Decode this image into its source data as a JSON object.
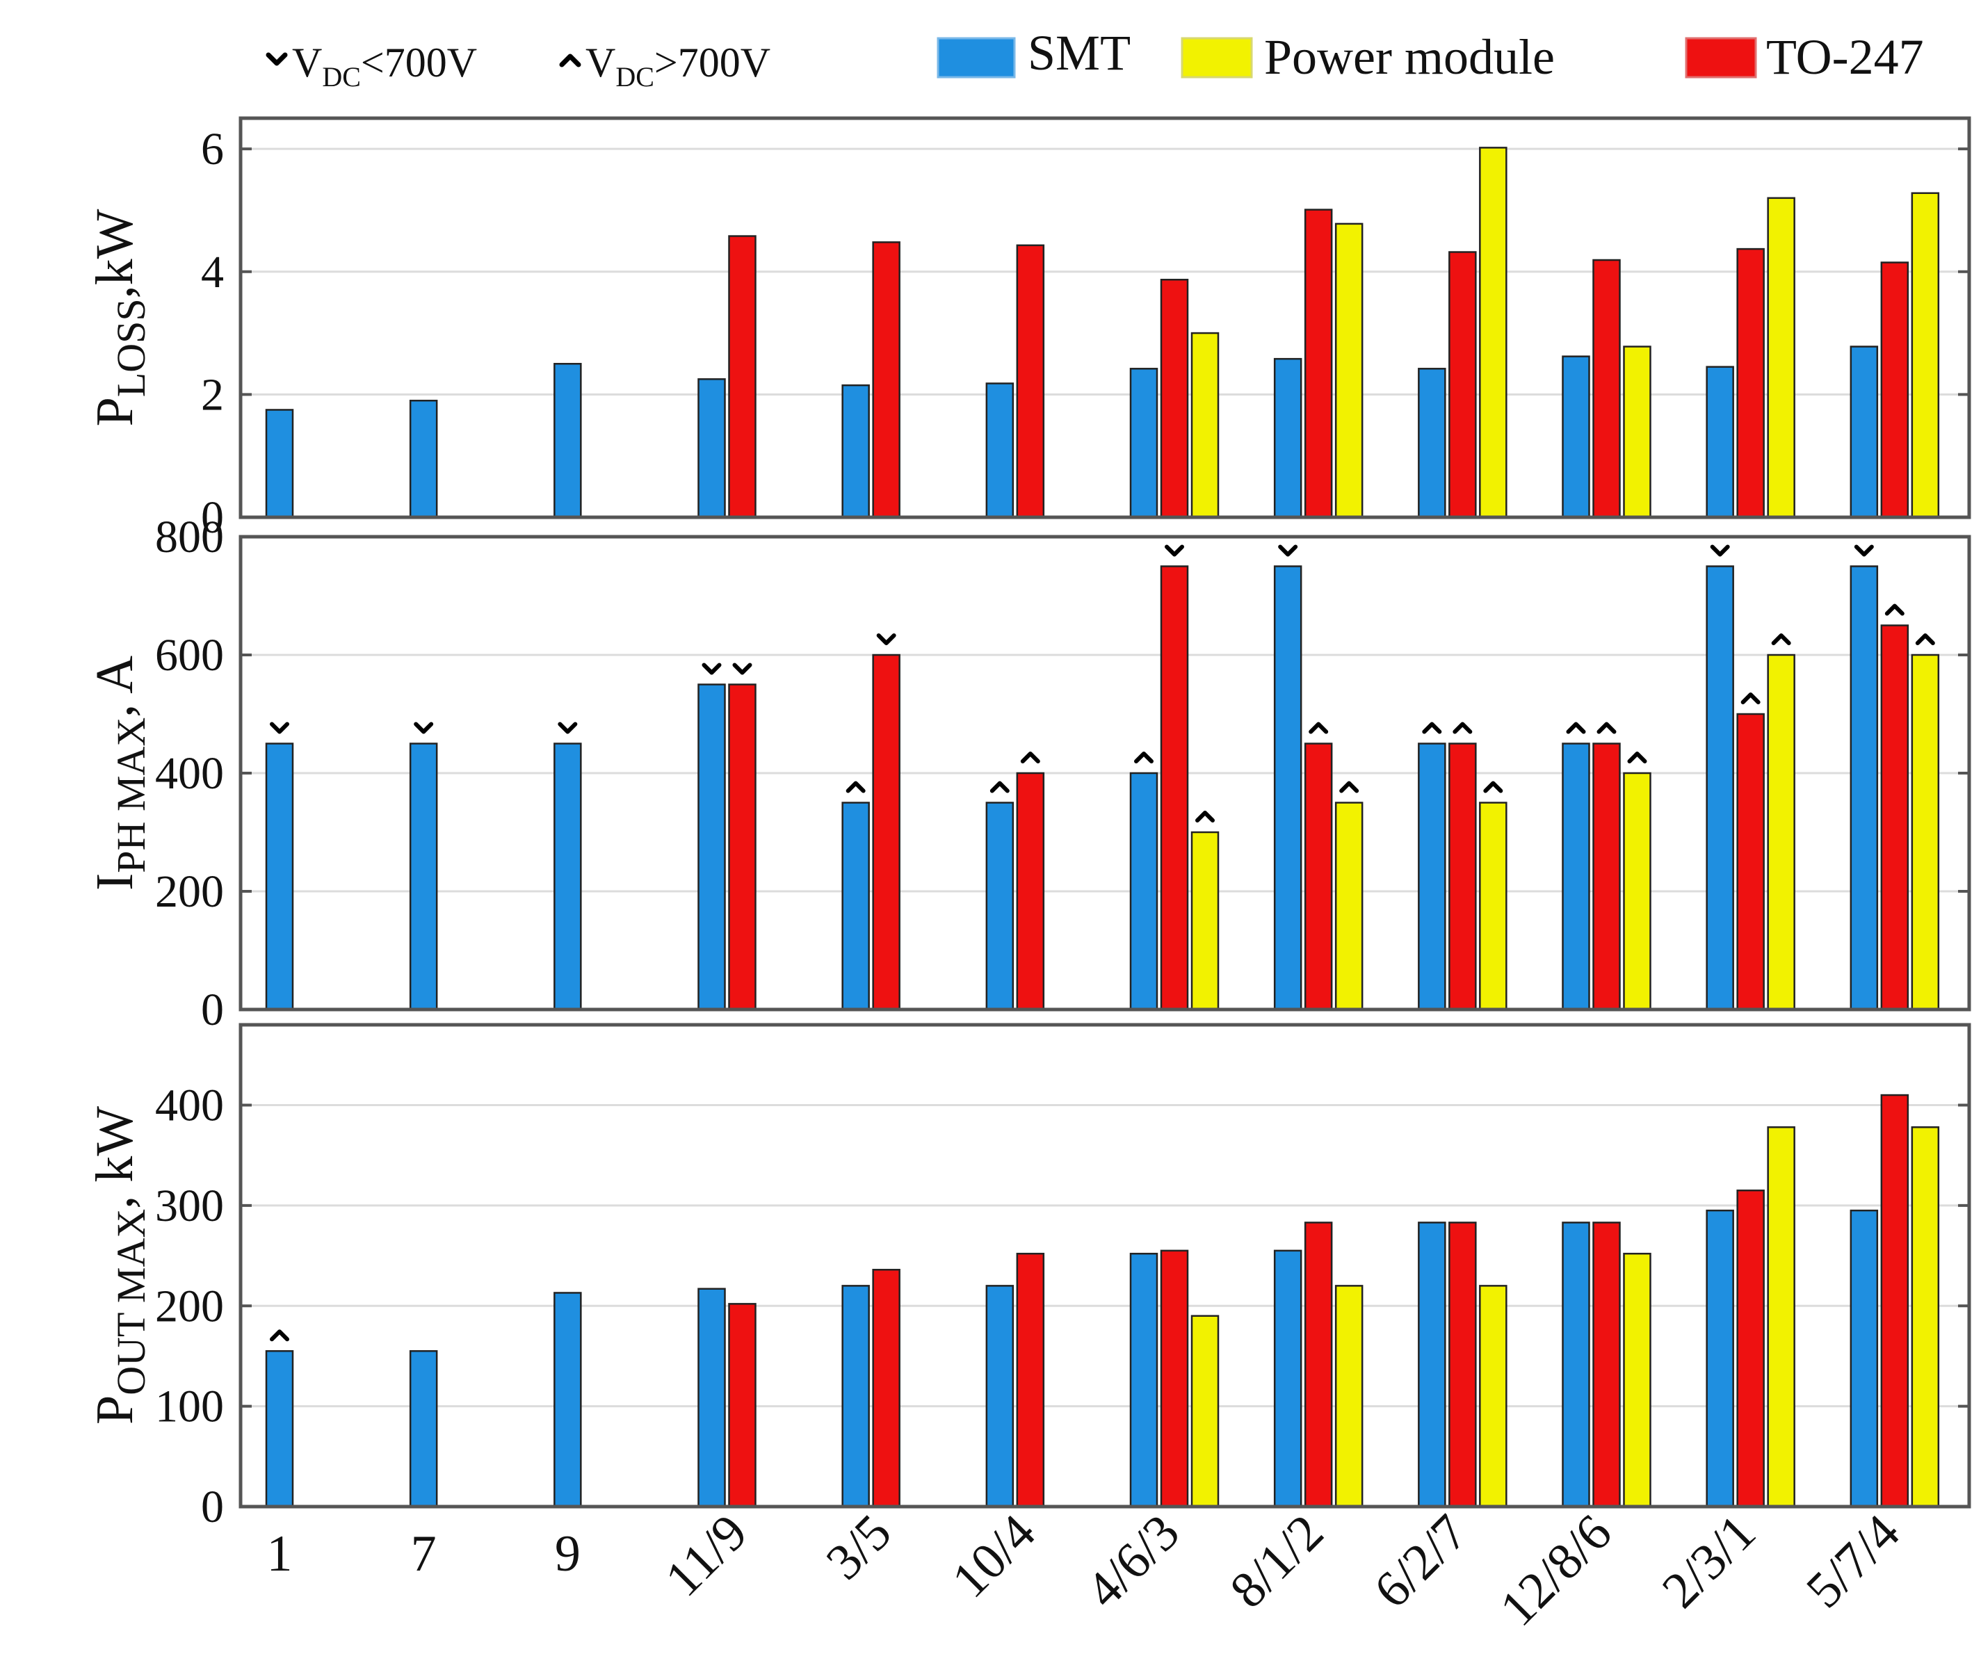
{
  "colors": {
    "SMT": "#1f8fe0",
    "Power module": "#f2f200",
    "TO-247": "#ee1111",
    "grid": "#dcdcdc",
    "axis": "#555555",
    "background": "#ffffff",
    "bar_outline": "#222222"
  },
  "legend": {
    "marker_below": {
      "main": "V",
      "sub": "DC",
      "rest": "<700V"
    },
    "marker_above": {
      "main": "V",
      "sub": "DC",
      "rest": ">700V"
    },
    "series": [
      "SMT",
      "Power module",
      "TO-247"
    ]
  },
  "chart_data": [
    {
      "type": "bar",
      "id": "p_loss",
      "ylabel": {
        "main": "P",
        "sub": "LOSS",
        "rest": ",kW"
      },
      "ylim": [
        0,
        6.5
      ],
      "yticks": [
        0,
        2,
        4,
        6
      ],
      "categories": [
        "1",
        "7",
        "9",
        "11/9",
        "3/5",
        "10/4",
        "4/6/3",
        "8/1/2",
        "6/2/7",
        "12/8/6",
        "2/3/1",
        "5/7/4"
      ],
      "series": [
        {
          "name": "SMT",
          "values": [
            1.75,
            1.9,
            2.5,
            2.25,
            2.15,
            2.18,
            2.42,
            2.58,
            2.42,
            2.62,
            2.45,
            2.78
          ]
        },
        {
          "name": "TO-247",
          "values": [
            null,
            null,
            null,
            4.58,
            4.48,
            4.43,
            3.87,
            5.01,
            4.32,
            4.19,
            4.37,
            4.15
          ]
        },
        {
          "name": "Power module",
          "values": [
            null,
            null,
            null,
            null,
            null,
            null,
            3.0,
            4.78,
            6.02,
            2.78,
            5.2,
            5.28
          ]
        }
      ],
      "markers": []
    },
    {
      "type": "bar",
      "id": "i_ph_max",
      "ylabel": {
        "main": "I",
        "sub": "PH MAX",
        "rest": ", A"
      },
      "ylim": [
        0,
        800
      ],
      "yticks": [
        0,
        200,
        400,
        600,
        800
      ],
      "categories": [
        "1",
        "7",
        "9",
        "11/9",
        "3/5",
        "10/4",
        "4/6/3",
        "8/1/2",
        "6/2/7",
        "12/8/6",
        "2/3/1",
        "5/7/4"
      ],
      "series": [
        {
          "name": "SMT",
          "values": [
            450,
            450,
            450,
            550,
            350,
            350,
            400,
            750,
            450,
            450,
            750,
            750
          ]
        },
        {
          "name": "TO-247",
          "values": [
            null,
            null,
            null,
            550,
            600,
            400,
            750,
            450,
            450,
            450,
            500,
            650
          ]
        },
        {
          "name": "Power module",
          "values": [
            null,
            null,
            null,
            null,
            null,
            null,
            300,
            350,
            350,
            400,
            600,
            600
          ]
        }
      ],
      "markers": [
        [
          "v",
          "v",
          "v",
          "v",
          "^",
          "^",
          "^",
          "v",
          "^",
          "^",
          "v",
          "v"
        ],
        [
          null,
          null,
          null,
          "v",
          "v",
          "^",
          "v",
          "^",
          "^",
          "^",
          "^",
          "^"
        ],
        [
          null,
          null,
          null,
          null,
          null,
          null,
          "^",
          "^",
          "^",
          "^",
          "^",
          "^"
        ]
      ]
    },
    {
      "type": "bar",
      "id": "p_out_max",
      "ylabel": {
        "main": "P",
        "sub": "OUT MAX",
        "rest": ", kW"
      },
      "ylim": [
        0,
        480
      ],
      "yticks": [
        0,
        100,
        200,
        300,
        400
      ],
      "categories": [
        "1",
        "7",
        "9",
        "11/9",
        "3/5",
        "10/4",
        "4/6/3",
        "8/1/2",
        "6/2/7",
        "12/8/6",
        "2/3/1",
        "5/7/4"
      ],
      "series": [
        {
          "name": "SMT",
          "values": [
            155,
            155,
            213,
            217,
            220,
            220,
            252,
            255,
            283,
            283,
            295,
            295
          ]
        },
        {
          "name": "TO-247",
          "values": [
            null,
            null,
            null,
            202,
            236,
            252,
            255,
            283,
            283,
            283,
            315,
            410
          ]
        },
        {
          "name": "Power module",
          "values": [
            null,
            null,
            null,
            null,
            null,
            null,
            190,
            220,
            220,
            252,
            378,
            378
          ]
        }
      ],
      "markers": [
        [
          "^",
          null,
          null,
          null,
          null,
          null,
          null,
          null,
          null,
          null,
          null,
          null
        ],
        [],
        []
      ]
    }
  ]
}
